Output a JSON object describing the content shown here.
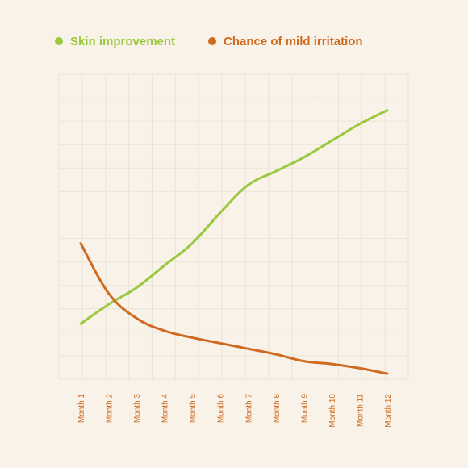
{
  "chart_data": {
    "type": "line",
    "title": "",
    "xlabel": "",
    "ylabel": "",
    "categories": [
      "Month 1",
      "Month 2",
      "Month 3",
      "Month 4",
      "Month 5",
      "Month 6",
      "Month 7",
      "Month 8",
      "Month 9",
      "Month 10",
      "Month 11",
      "Month 12"
    ],
    "series": [
      {
        "name": "Skin improvement",
        "color": "#9bc83e",
        "values": [
          20,
          27,
          33,
          41,
          49,
          60,
          70,
          75,
          80,
          86,
          92,
          97
        ]
      },
      {
        "name": "Chance of mild irritation",
        "color": "#cf6b21",
        "values": [
          49,
          31,
          22,
          17.5,
          15,
          13,
          11,
          9,
          6.5,
          5.5,
          4,
          2
        ]
      }
    ],
    "ylim": [
      0,
      110
    ],
    "grid": true,
    "legend": "top-left",
    "colors": {
      "background": "#f8f2e8",
      "grid": "#ece4d6",
      "tick_label": "#cf6b21"
    }
  }
}
